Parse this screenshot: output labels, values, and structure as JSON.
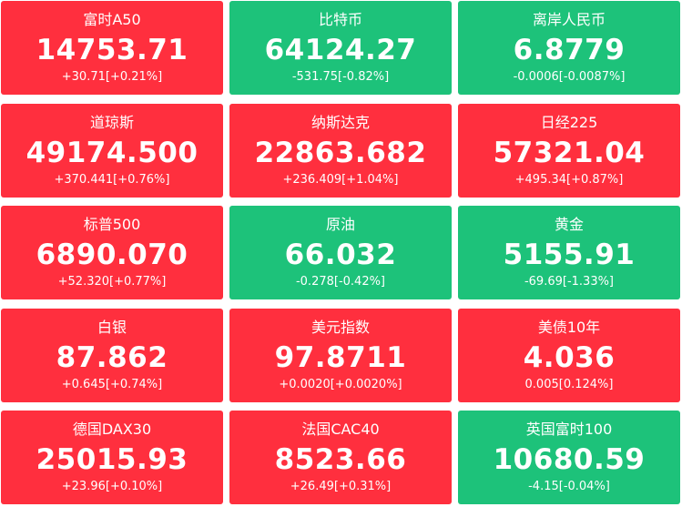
{
  "colors": {
    "up": "#ff2f3e",
    "down": "#1dc27a",
    "text": "#ffffff"
  },
  "quotes": [
    {
      "name": "富时A50",
      "price": "14753.71",
      "change": "+30.71[+0.21%]",
      "trend": "up"
    },
    {
      "name": "比特币",
      "price": "64124.27",
      "change": "-531.75[-0.82%]",
      "trend": "down"
    },
    {
      "name": "离岸人民币",
      "price": "6.8779",
      "change": "-0.0006[-0.0087%]",
      "trend": "down"
    },
    {
      "name": "道琼斯",
      "price": "49174.500",
      "change": "+370.441[+0.76%]",
      "trend": "up"
    },
    {
      "name": "纳斯达克",
      "price": "22863.682",
      "change": "+236.409[+1.04%]",
      "trend": "up"
    },
    {
      "name": "日经225",
      "price": "57321.04",
      "change": "+495.34[+0.87%]",
      "trend": "up"
    },
    {
      "name": "标普500",
      "price": "6890.070",
      "change": "+52.320[+0.77%]",
      "trend": "up"
    },
    {
      "name": "原油",
      "price": "66.032",
      "change": "-0.278[-0.42%]",
      "trend": "down"
    },
    {
      "name": "黄金",
      "price": "5155.91",
      "change": "-69.69[-1.33%]",
      "trend": "down"
    },
    {
      "name": "白银",
      "price": "87.862",
      "change": "+0.645[+0.74%]",
      "trend": "up"
    },
    {
      "name": "美元指数",
      "price": "97.8711",
      "change": "+0.0020[+0.0020%]",
      "trend": "up"
    },
    {
      "name": "美债10年",
      "price": "4.036",
      "change": "0.005[0.124%]",
      "trend": "up"
    },
    {
      "name": "德国DAX30",
      "price": "25015.93",
      "change": "+23.96[+0.10%]",
      "trend": "up"
    },
    {
      "name": "法国CAC40",
      "price": "8523.66",
      "change": "+26.49[+0.31%]",
      "trend": "up"
    },
    {
      "name": "英国富时100",
      "price": "10680.59",
      "change": "-4.15[-0.04%]",
      "trend": "down"
    }
  ]
}
